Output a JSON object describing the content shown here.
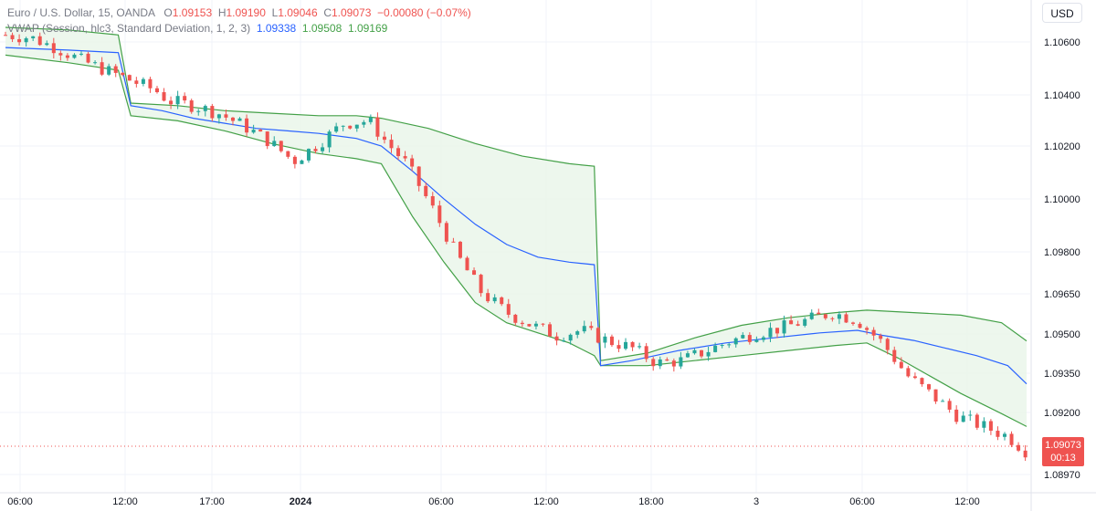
{
  "legend": {
    "symbol": "Euro / U.S. Dollar, 15, OANDA",
    "open_label": "O",
    "open": "1.09153",
    "high_label": "H",
    "high": "1.09190",
    "low_label": "L",
    "low": "1.09046",
    "close_label": "C",
    "close": "1.09073",
    "change": "−0.00080 (−0.07%)",
    "vwap_name": "VWAP (Session, hlc3, Standard Deviation, 1, 2, 3)",
    "vwap_basis": "1.09338",
    "vwap_upper": "1.09508",
    "vwap_lower": "1.09169"
  },
  "currency_button": "USD",
  "last_price": {
    "value": "1.09073",
    "countdown": "00:13"
  },
  "colors": {
    "up": "#26a69a",
    "down": "#ef5350",
    "vwap": "#2962ff",
    "band": "#43a047",
    "band_fill": "#e8f5e9",
    "grid": "#f0f3fa"
  },
  "chart_data": {
    "type": "line",
    "title": "Euro / U.S. Dollar, 15, OANDA",
    "ylim": [
      1.0895,
      1.1075
    ],
    "y_ticks": [
      "1.10600",
      "1.10400",
      "1.10200",
      "1.10000",
      "1.09800",
      "1.09650",
      "1.09500",
      "1.09350",
      "1.09200",
      "1.08970"
    ],
    "x_ticks": [
      "06:00",
      "12:00",
      "17:00",
      "2024",
      "06:00",
      "12:00",
      "18:00",
      "3",
      "06:00",
      "12:00"
    ],
    "grid": true,
    "legend_position": "top-left",
    "series": [
      {
        "name": "EURUSD",
        "points": [
          [
            0,
            1.1072
          ],
          [
            8,
            1.1071
          ],
          [
            16,
            1.1067
          ],
          [
            24,
            1.1062
          ],
          [
            32,
            1.1058
          ],
          [
            40,
            1.1054
          ],
          [
            48,
            1.105
          ],
          [
            52,
            1.1046
          ],
          [
            60,
            1.1044
          ],
          [
            68,
            1.1041
          ],
          [
            76,
            1.1036
          ],
          [
            84,
            1.103
          ],
          [
            92,
            1.1022
          ],
          [
            100,
            1.1029
          ],
          [
            108,
            1.1037
          ],
          [
            116,
            1.1038
          ],
          [
            122,
            1.1029
          ],
          [
            128,
            1.1021
          ],
          [
            136,
            1.1004
          ],
          [
            144,
            1.0985
          ],
          [
            152,
            1.097
          ],
          [
            160,
            1.0962
          ],
          [
            168,
            1.0957
          ],
          [
            176,
            1.0953
          ],
          [
            184,
            1.0955
          ],
          [
            192,
            1.0951
          ],
          [
            200,
            1.0948
          ],
          [
            208,
            1.0942
          ],
          [
            216,
            1.0943
          ],
          [
            224,
            1.0947
          ],
          [
            232,
            1.0951
          ],
          [
            240,
            1.0954
          ],
          [
            248,
            1.0956
          ],
          [
            256,
            1.0959
          ],
          [
            264,
            1.0962
          ],
          [
            272,
            1.0959
          ],
          [
            280,
            1.095
          ],
          [
            288,
            1.0937
          ],
          [
            296,
            1.0929
          ],
          [
            304,
            1.0921
          ],
          [
            312,
            1.0917
          ],
          [
            320,
            1.0913
          ],
          [
            326,
            1.0907
          ]
        ]
      },
      {
        "name": "VWAP",
        "points": [
          [
            0,
            1.1067
          ],
          [
            20,
            1.1066
          ],
          [
            36,
            1.1065
          ],
          [
            40,
            1.1044
          ],
          [
            50,
            1.1042
          ],
          [
            60,
            1.1039
          ],
          [
            70,
            1.1037
          ],
          [
            80,
            1.1035
          ],
          [
            90,
            1.1034
          ],
          [
            100,
            1.1033
          ],
          [
            112,
            1.1031
          ],
          [
            120,
            1.1028
          ],
          [
            130,
            1.1018
          ],
          [
            140,
            1.1007
          ],
          [
            150,
            1.0997
          ],
          [
            160,
            1.0989
          ],
          [
            170,
            1.0984
          ],
          [
            180,
            1.0982
          ],
          [
            188,
            1.0981
          ],
          [
            190,
            1.0941
          ],
          [
            200,
            1.0943
          ],
          [
            215,
            1.0947
          ],
          [
            230,
            1.095
          ],
          [
            245,
            1.0952
          ],
          [
            260,
            1.0954
          ],
          [
            272,
            1.0955
          ],
          [
            280,
            1.0953
          ],
          [
            290,
            1.0951
          ],
          [
            300,
            1.0948
          ],
          [
            310,
            1.0945
          ],
          [
            320,
            1.0941
          ],
          [
            326,
            1.09338
          ]
        ]
      },
      {
        "name": "Upper Band",
        "points": [
          [
            0,
            1.1075
          ],
          [
            20,
            1.1074
          ],
          [
            36,
            1.1072
          ],
          [
            40,
            1.1045
          ],
          [
            55,
            1.1044
          ],
          [
            70,
            1.1042
          ],
          [
            85,
            1.1041
          ],
          [
            100,
            1.104
          ],
          [
            112,
            1.104
          ],
          [
            120,
            1.1039
          ],
          [
            135,
            1.1035
          ],
          [
            150,
            1.1029
          ],
          [
            165,
            1.1024
          ],
          [
            180,
            1.1021
          ],
          [
            188,
            1.102
          ],
          [
            190,
            1.0943
          ],
          [
            205,
            1.0946
          ],
          [
            220,
            1.0952
          ],
          [
            235,
            1.0957
          ],
          [
            250,
            1.096
          ],
          [
            265,
            1.0962
          ],
          [
            275,
            1.0963
          ],
          [
            290,
            1.0962
          ],
          [
            305,
            1.0961
          ],
          [
            318,
            1.0958
          ],
          [
            326,
            1.09508
          ]
        ]
      },
      {
        "name": "Lower Band",
        "points": [
          [
            0,
            1.1064
          ],
          [
            20,
            1.1061
          ],
          [
            36,
            1.1058
          ],
          [
            40,
            1.104
          ],
          [
            55,
            1.1038
          ],
          [
            70,
            1.1034
          ],
          [
            85,
            1.1029
          ],
          [
            100,
            1.1025
          ],
          [
            112,
            1.1023
          ],
          [
            120,
            1.1021
          ],
          [
            130,
            1.1
          ],
          [
            140,
            1.0982
          ],
          [
            150,
            1.0966
          ],
          [
            160,
            1.0958
          ],
          [
            170,
            1.0954
          ],
          [
            180,
            1.095
          ],
          [
            188,
            1.0945
          ],
          [
            190,
            1.0941
          ],
          [
            205,
            1.0941
          ],
          [
            220,
            1.0943
          ],
          [
            235,
            1.0945
          ],
          [
            250,
            1.0947
          ],
          [
            265,
            1.0949
          ],
          [
            275,
            1.095
          ],
          [
            285,
            1.0944
          ],
          [
            295,
            1.0937
          ],
          [
            305,
            1.093
          ],
          [
            318,
            1.0922
          ],
          [
            326,
            1.09169
          ]
        ]
      }
    ],
    "annotations": [
      "1.09073",
      "00:13"
    ]
  }
}
